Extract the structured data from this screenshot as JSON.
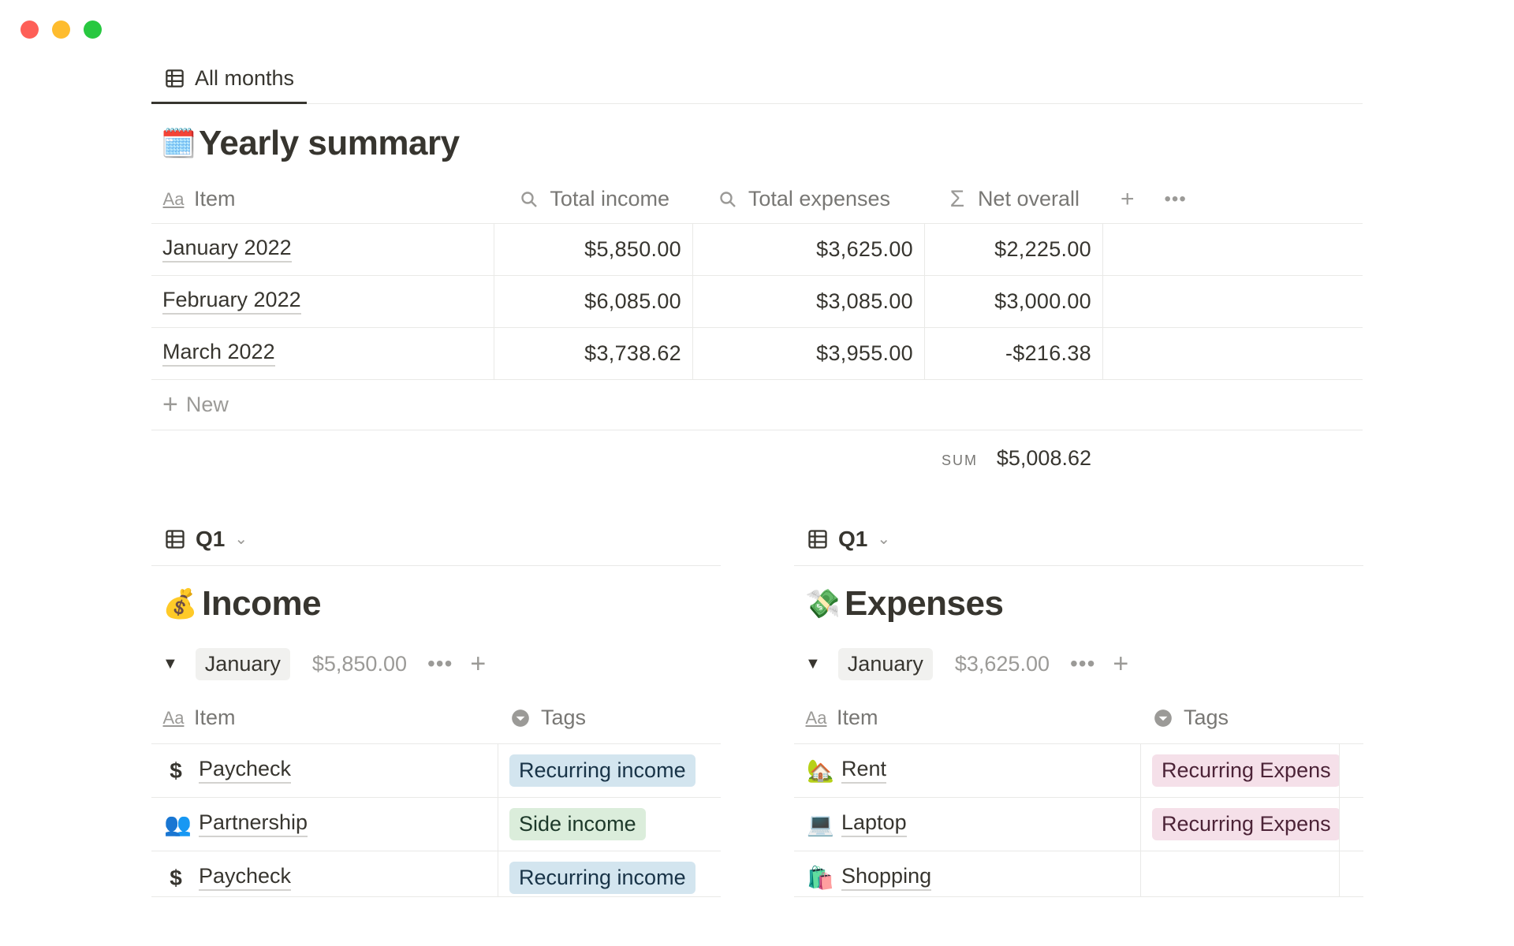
{
  "view_tab": {
    "label": "All months",
    "icon": "table-icon"
  },
  "summary": {
    "emoji": "🗓️",
    "title": "Yearly summary",
    "columns": {
      "item": "Item",
      "total_income": "Total income",
      "total_expenses": "Total expenses",
      "net_overall": "Net overall"
    },
    "rows": [
      {
        "item": "January 2022",
        "income": "$5,850.00",
        "expenses": "$3,625.00",
        "net": "$2,225.00"
      },
      {
        "item": "February 2022",
        "income": "$6,085.00",
        "expenses": "$3,085.00",
        "net": "$3,000.00"
      },
      {
        "item": "March 2022",
        "income": "$3,738.62",
        "expenses": "$3,955.00",
        "net": "-$216.38"
      }
    ],
    "new_label": "New",
    "sum_label": "SUM",
    "sum_value": "$5,008.62"
  },
  "income": {
    "view_label": "Q1",
    "emoji": "💰",
    "title": "Income",
    "group": {
      "name": "January",
      "sum": "$5,850.00"
    },
    "columns": {
      "item": "Item",
      "tags": "Tags"
    },
    "rows": [
      {
        "icon": "$",
        "item": "Paycheck",
        "tag": "Recurring income",
        "tag_color": "blue"
      },
      {
        "icon": "👥",
        "item": "Partnership",
        "tag": "Side income",
        "tag_color": "green"
      },
      {
        "icon": "$",
        "item": "Paycheck",
        "tag": "Recurring income",
        "tag_color": "blue"
      }
    ]
  },
  "expenses": {
    "view_label": "Q1",
    "emoji": "💸",
    "title": "Expenses",
    "group": {
      "name": "January",
      "sum": "$3,625.00"
    },
    "columns": {
      "item": "Item",
      "tags": "Tags"
    },
    "rows": [
      {
        "icon": "🏡",
        "item": "Rent",
        "tag": "Recurring Expens",
        "tag_color": "pink"
      },
      {
        "icon": "💻",
        "item": "Laptop",
        "tag": "Recurring Expens",
        "tag_color": "pink"
      },
      {
        "icon": "🛍️",
        "item": "Shopping",
        "tag": "",
        "tag_color": ""
      }
    ]
  }
}
